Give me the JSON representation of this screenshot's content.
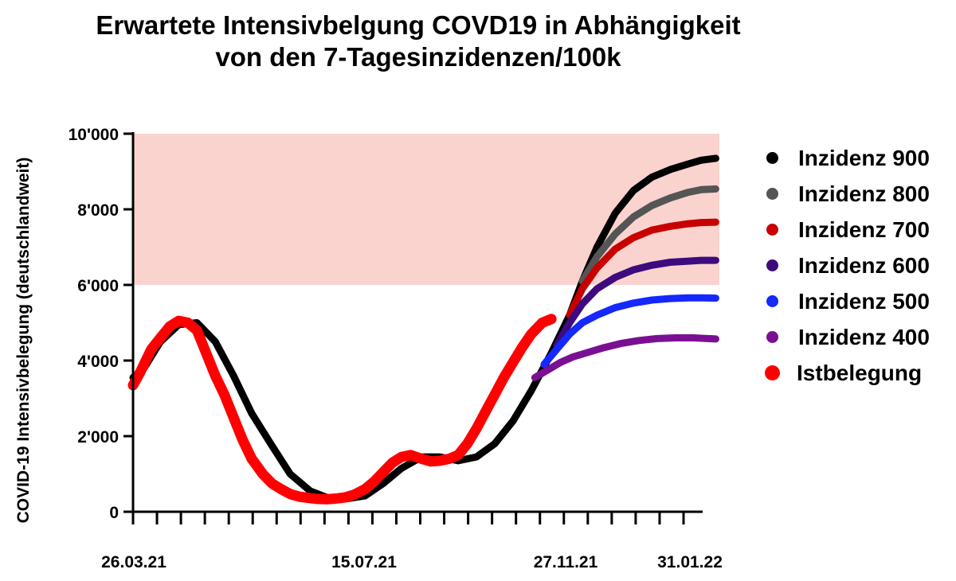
{
  "title_line1": "Erwartete Intensivbelgung COVD19 in Abhängigkeit",
  "title_line2": "von den 7-Tagesinzidenzen/100k",
  "chart_data": {
    "type": "line",
    "title": "Erwartete Intensivbelgung COVD19 in Abhängigkeit von den 7-Tagesinzidenzen/100k",
    "xlabel": "",
    "ylabel": "COVID-19 Intensivbelegung (deutschlandweit)",
    "x_tick_labels": [
      "26.03.21",
      "15.07.21",
      "27.11.21",
      "31.01.22"
    ],
    "y_ticks": [
      0,
      2000,
      4000,
      6000,
      8000,
      10000
    ],
    "y_tick_labels": [
      "0",
      "2'000",
      "4'000",
      "6'000",
      "8'000",
      "10'000"
    ],
    "x_range": [
      "2021-03-26",
      "2022-02-10"
    ],
    "y_range": [
      0,
      10000
    ],
    "x_ticks_minor_count": 23,
    "shaded_band": {
      "y_from": 6000,
      "y_to": 10000,
      "color": "#fbd3ce"
    },
    "legend_position": "right",
    "grid": false,
    "series": [
      {
        "name": "Inzidenz 900",
        "color": "#000000",
        "x": [
          "2021-03-26",
          "2021-04-01",
          "2021-04-10",
          "2021-04-20",
          "2021-04-30",
          "2021-05-10",
          "2021-05-20",
          "2021-05-30",
          "2021-06-10",
          "2021-06-20",
          "2021-07-01",
          "2021-07-10",
          "2021-07-20",
          "2021-07-31",
          "2021-08-10",
          "2021-08-20",
          "2021-08-31",
          "2021-09-10",
          "2021-09-20",
          "2021-09-30",
          "2021-10-10",
          "2021-10-20",
          "2021-10-30",
          "2021-11-10",
          "2021-11-20",
          "2021-11-27",
          "2021-12-05",
          "2021-12-15",
          "2021-12-25",
          "2022-01-04",
          "2022-01-14",
          "2022-01-24",
          "2022-01-31",
          "2022-02-08"
        ],
        "values": [
          3550,
          3800,
          4500,
          4950,
          5000,
          4500,
          3600,
          2600,
          1750,
          1000,
          550,
          380,
          340,
          420,
          750,
          1150,
          1450,
          1450,
          1350,
          1450,
          1800,
          2400,
          3200,
          4200,
          5200,
          6100,
          7000,
          7900,
          8500,
          8850,
          9050,
          9200,
          9300,
          9350
        ]
      },
      {
        "name": "Inzidenz 800",
        "color": "#555555",
        "x": [
          "2021-11-27",
          "2021-12-05",
          "2021-12-15",
          "2021-12-25",
          "2022-01-04",
          "2022-01-14",
          "2022-01-24",
          "2022-01-31",
          "2022-02-08"
        ],
        "values": [
          6100,
          6750,
          7350,
          7800,
          8100,
          8300,
          8450,
          8520,
          8540
        ]
      },
      {
        "name": "Inzidenz 700",
        "color": "#c80000",
        "x": [
          "2021-11-20",
          "2021-11-27",
          "2021-12-05",
          "2021-12-15",
          "2021-12-25",
          "2022-01-04",
          "2022-01-14",
          "2022-01-24",
          "2022-01-31",
          "2022-02-08"
        ],
        "values": [
          5200,
          5900,
          6450,
          6950,
          7250,
          7450,
          7550,
          7620,
          7650,
          7660
        ]
      },
      {
        "name": "Inzidenz 600",
        "color": "#3d0b7f",
        "x": [
          "2021-11-13",
          "2021-11-20",
          "2021-11-27",
          "2021-12-05",
          "2021-12-15",
          "2021-12-25",
          "2022-01-04",
          "2022-01-14",
          "2022-01-24",
          "2022-01-31",
          "2022-02-08"
        ],
        "values": [
          4400,
          5000,
          5500,
          5900,
          6200,
          6400,
          6520,
          6600,
          6630,
          6650,
          6650
        ]
      },
      {
        "name": "Inzidenz 500",
        "color": "#1428ff",
        "x": [
          "2021-11-06",
          "2021-11-13",
          "2021-11-20",
          "2021-11-27",
          "2021-12-05",
          "2021-12-15",
          "2021-12-25",
          "2022-01-04",
          "2022-01-14",
          "2022-01-24",
          "2022-01-31",
          "2022-02-08"
        ],
        "values": [
          3900,
          4300,
          4700,
          5000,
          5200,
          5400,
          5520,
          5600,
          5640,
          5660,
          5660,
          5650
        ]
      },
      {
        "name": "Inzidenz 400",
        "color": "#7a0f93",
        "x": [
          "2021-11-01",
          "2021-11-08",
          "2021-11-15",
          "2021-11-22",
          "2021-11-29",
          "2021-12-08",
          "2021-12-18",
          "2021-12-28",
          "2022-01-07",
          "2022-01-17",
          "2022-01-27",
          "2022-02-08"
        ],
        "values": [
          3550,
          3750,
          3950,
          4100,
          4200,
          4330,
          4450,
          4530,
          4580,
          4600,
          4600,
          4570
        ]
      },
      {
        "name": "Istbelegung",
        "color": "#ff0000",
        "x": [
          "2021-03-26",
          "2021-03-30",
          "2021-04-05",
          "2021-04-10",
          "2021-04-15",
          "2021-04-20",
          "2021-04-25",
          "2021-04-30",
          "2021-05-05",
          "2021-05-10",
          "2021-05-15",
          "2021-05-20",
          "2021-05-25",
          "2021-05-30",
          "2021-06-05",
          "2021-06-10",
          "2021-06-15",
          "2021-06-20",
          "2021-06-25",
          "2021-07-01",
          "2021-07-05",
          "2021-07-10",
          "2021-07-15",
          "2021-07-20",
          "2021-07-25",
          "2021-07-31",
          "2021-08-05",
          "2021-08-10",
          "2021-08-15",
          "2021-08-20",
          "2021-08-25",
          "2021-08-31",
          "2021-09-05",
          "2021-09-10",
          "2021-09-15",
          "2021-09-20",
          "2021-09-25",
          "2021-09-30",
          "2021-10-05",
          "2021-10-10",
          "2021-10-15",
          "2021-10-20",
          "2021-10-25",
          "2021-10-30",
          "2021-11-05",
          "2021-11-10"
        ],
        "values": [
          3350,
          3700,
          4300,
          4600,
          4900,
          5050,
          5000,
          4800,
          4200,
          3600,
          3100,
          2500,
          1900,
          1400,
          1000,
          750,
          600,
          470,
          400,
          360,
          340,
          330,
          350,
          380,
          450,
          600,
          800,
          1050,
          1300,
          1450,
          1500,
          1400,
          1330,
          1350,
          1400,
          1500,
          1800,
          2200,
          2650,
          3100,
          3550,
          3950,
          4350,
          4700,
          5000,
          5100
        ]
      }
    ]
  }
}
